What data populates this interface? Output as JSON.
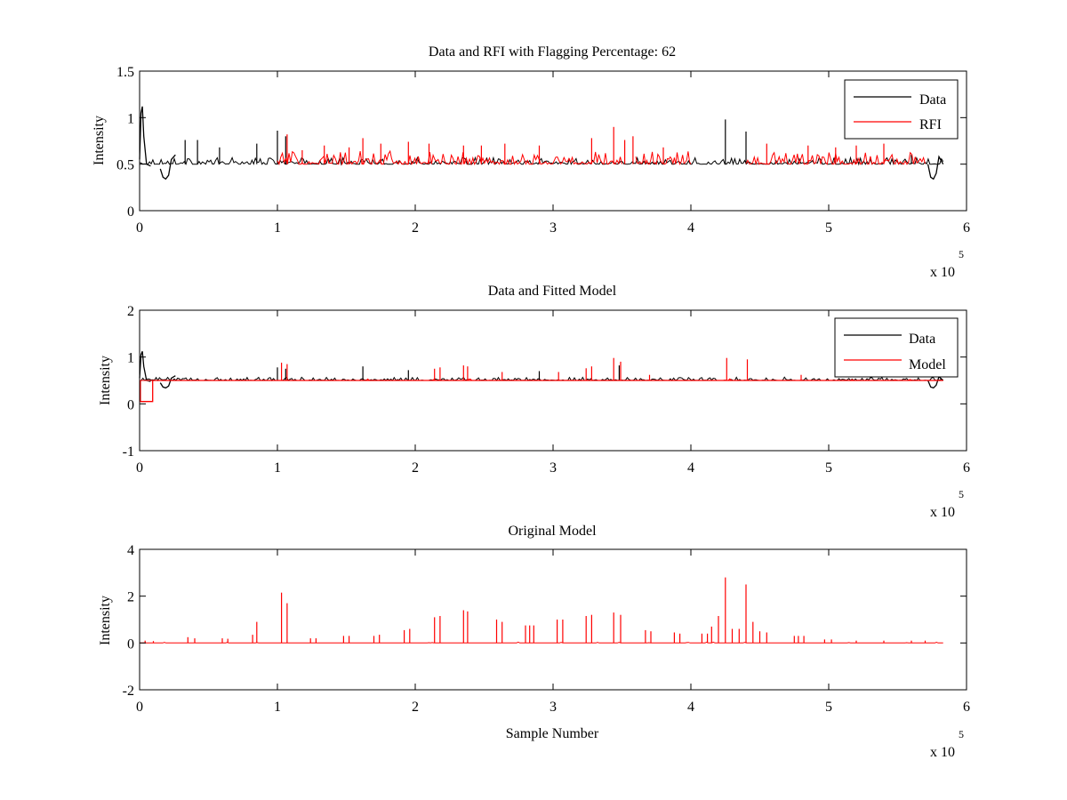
{
  "figure": {
    "colors": {
      "data": "#000000",
      "rfi": "#ff0000",
      "model": "#ff0000",
      "axes": "#000000",
      "background": "#ffffff"
    }
  },
  "chart_data": [
    {
      "type": "line",
      "title": "Data and RFI with Flagging Percentage: 62",
      "ylabel": "Intensity",
      "xlabel": "",
      "xlim": [
        0,
        600000
      ],
      "ylim": [
        0,
        1.5
      ],
      "xticks": [
        0,
        1,
        2,
        3,
        4,
        5,
        6
      ],
      "yticks": [
        "0",
        "0.5",
        "1",
        "1.5"
      ],
      "ytick_values": [
        0,
        0.5,
        1,
        1.5
      ],
      "x_multiplier": {
        "base": "x 10",
        "exponent": "5"
      },
      "legend": {
        "position": "top-right",
        "entries": [
          "Data",
          "RFI"
        ]
      },
      "series": [
        {
          "name": "Data",
          "color": "#000000",
          "baseline": 0.5,
          "features": [
            {
              "x": [
                0,
                1000,
                2000,
                3000,
                5000,
                8000
              ],
              "y": [
                0.55,
                1.05,
                1.12,
                0.8,
                0.5,
                0.48
              ]
            },
            {
              "x": [
                15000,
                17000,
                19000,
                21000,
                23000,
                26000
              ],
              "y": [
                0.45,
                0.36,
                0.34,
                0.38,
                0.55,
                0.6
              ]
            },
            {
              "x": [
                572000,
                574000,
                576000,
                578000,
                580000,
                583000
              ],
              "y": [
                0.5,
                0.36,
                0.34,
                0.4,
                0.58,
                0.5
              ]
            }
          ],
          "spikes": [
            [
              33000,
              0.76
            ],
            [
              42000,
              0.76
            ],
            [
              58000,
              0.68
            ],
            [
              85000,
              0.72
            ],
            [
              100000,
              0.86
            ],
            [
              106000,
              0.8
            ],
            [
              425000,
              0.98
            ],
            [
              440000,
              0.85
            ],
            [
              560000,
              0.6
            ]
          ]
        },
        {
          "name": "RFI",
          "color": "#ff0000",
          "baseline": 0.5,
          "segments": [
            [
              100000,
              350000
            ],
            [
              360000,
              400000
            ],
            [
              440000,
              570000
            ]
          ],
          "spikes": [
            [
              107000,
              0.82
            ],
            [
              118000,
              0.65
            ],
            [
              134000,
              0.7
            ],
            [
              152000,
              0.68
            ],
            [
              162000,
              0.78
            ],
            [
              175000,
              0.72
            ],
            [
              195000,
              0.74
            ],
            [
              210000,
              0.72
            ],
            [
              235000,
              0.7
            ],
            [
              248000,
              0.7
            ],
            [
              265000,
              0.72
            ],
            [
              290000,
              0.7
            ],
            [
              328000,
              0.78
            ],
            [
              344000,
              0.9
            ],
            [
              352000,
              0.76
            ],
            [
              358000,
              0.8
            ],
            [
              380000,
              0.68
            ],
            [
              455000,
              0.72
            ],
            [
              485000,
              0.7
            ],
            [
              505000,
              0.68
            ],
            [
              520000,
              0.7
            ],
            [
              540000,
              0.72
            ]
          ]
        }
      ]
    },
    {
      "type": "line",
      "title": "Data and Fitted Model",
      "ylabel": "Intensity",
      "xlabel": "",
      "xlim": [
        0,
        600000
      ],
      "ylim": [
        -1,
        2
      ],
      "xticks": [
        0,
        1,
        2,
        3,
        4,
        5,
        6
      ],
      "yticks": [
        "-1",
        "0",
        "1",
        "2"
      ],
      "ytick_values": [
        -1,
        0,
        1,
        2
      ],
      "x_multiplier": {
        "base": "x 10",
        "exponent": "5"
      },
      "legend": {
        "position": "top-right",
        "entries": [
          "Data",
          "Model"
        ]
      },
      "series": [
        {
          "name": "Data",
          "color": "#000000",
          "baseline": 0.5,
          "features": [
            {
              "x": [
                0,
                1000,
                2000,
                3000,
                5000,
                8000
              ],
              "y": [
                0.55,
                1.05,
                1.12,
                0.8,
                0.5,
                0.48
              ]
            },
            {
              "x": [
                15000,
                17000,
                19000,
                21000,
                23000,
                26000
              ],
              "y": [
                0.45,
                0.36,
                0.34,
                0.38,
                0.55,
                0.6
              ]
            },
            {
              "x": [
                572000,
                574000,
                576000,
                578000,
                580000,
                583000
              ],
              "y": [
                0.5,
                0.36,
                0.34,
                0.4,
                0.58,
                0.5
              ]
            }
          ],
          "spikes": [
            [
              100000,
              0.78
            ],
            [
              106000,
              0.75
            ],
            [
              162000,
              0.8
            ],
            [
              195000,
              0.72
            ],
            [
              290000,
              0.7
            ],
            [
              348000,
              0.82
            ]
          ]
        },
        {
          "name": "Model",
          "color": "#ff0000",
          "baseline": 0.5,
          "features": [
            {
              "x": [
                0,
                600,
                600,
                9500,
                9500,
                583000
              ],
              "y": [
                0.5,
                0.5,
                0.05,
                0.05,
                0.5,
                0.5
              ]
            }
          ],
          "spikes": [
            [
              103000,
              0.88
            ],
            [
              107000,
              0.85
            ],
            [
              214000,
              0.75
            ],
            [
              218000,
              0.78
            ],
            [
              235000,
              0.82
            ],
            [
              238000,
              0.8
            ],
            [
              263000,
              0.68
            ],
            [
              304000,
              0.68
            ],
            [
              324000,
              0.76
            ],
            [
              328000,
              0.8
            ],
            [
              344000,
              0.98
            ],
            [
              349000,
              0.9
            ],
            [
              426000,
              0.98
            ],
            [
              441000,
              0.95
            ],
            [
              370000,
              0.62
            ],
            [
              480000,
              0.62
            ]
          ]
        }
      ]
    },
    {
      "type": "line",
      "title": "Original Model",
      "ylabel": "Intensity",
      "xlabel": "Sample Number",
      "xlim": [
        0,
        600000
      ],
      "ylim": [
        -2,
        4
      ],
      "xticks": [
        0,
        1,
        2,
        3,
        4,
        5,
        6
      ],
      "yticks": [
        "-2",
        "0",
        "2",
        "4"
      ],
      "ytick_values": [
        -2,
        0,
        2,
        4
      ],
      "x_multiplier": {
        "base": "x 10",
        "exponent": "5"
      },
      "series": [
        {
          "name": "Original Model",
          "color": "#ff0000",
          "baseline": 0.0,
          "range": [
            0,
            583000
          ],
          "spikes": [
            [
              4000,
              0.1
            ],
            [
              10000,
              0.08
            ],
            [
              35000,
              0.25
            ],
            [
              40000,
              0.2
            ],
            [
              60000,
              0.2
            ],
            [
              64000,
              0.18
            ],
            [
              82000,
              0.35
            ],
            [
              85000,
              0.9
            ],
            [
              103000,
              2.15
            ],
            [
              107000,
              1.7
            ],
            [
              124000,
              0.2
            ],
            [
              128000,
              0.2
            ],
            [
              148000,
              0.3
            ],
            [
              152000,
              0.3
            ],
            [
              170000,
              0.3
            ],
            [
              174000,
              0.35
            ],
            [
              192000,
              0.55
            ],
            [
              196000,
              0.6
            ],
            [
              214000,
              1.1
            ],
            [
              218000,
              1.15
            ],
            [
              235000,
              1.4
            ],
            [
              238000,
              1.35
            ],
            [
              259000,
              1.0
            ],
            [
              263000,
              0.9
            ],
            [
              280000,
              0.75
            ],
            [
              283000,
              0.75
            ],
            [
              286000,
              0.75
            ],
            [
              303000,
              1.0
            ],
            [
              307000,
              1.0
            ],
            [
              324000,
              1.15
            ],
            [
              328000,
              1.2
            ],
            [
              344000,
              1.3
            ],
            [
              349000,
              1.2
            ],
            [
              367000,
              0.55
            ],
            [
              371000,
              0.5
            ],
            [
              388000,
              0.45
            ],
            [
              392000,
              0.4
            ],
            [
              408000,
              0.4
            ],
            [
              412000,
              0.4
            ],
            [
              415000,
              0.7
            ],
            [
              420000,
              1.15
            ],
            [
              425000,
              2.8
            ],
            [
              430000,
              0.6
            ],
            [
              435000,
              0.6
            ],
            [
              440000,
              2.5
            ],
            [
              445000,
              0.9
            ],
            [
              450000,
              0.5
            ],
            [
              455000,
              0.45
            ],
            [
              475000,
              0.3
            ],
            [
              478000,
              0.3
            ],
            [
              482000,
              0.3
            ],
            [
              497000,
              0.15
            ],
            [
              502000,
              0.15
            ],
            [
              520000,
              0.1
            ],
            [
              540000,
              0.1
            ],
            [
              560000,
              0.1
            ],
            [
              570000,
              0.1
            ]
          ]
        }
      ]
    }
  ]
}
